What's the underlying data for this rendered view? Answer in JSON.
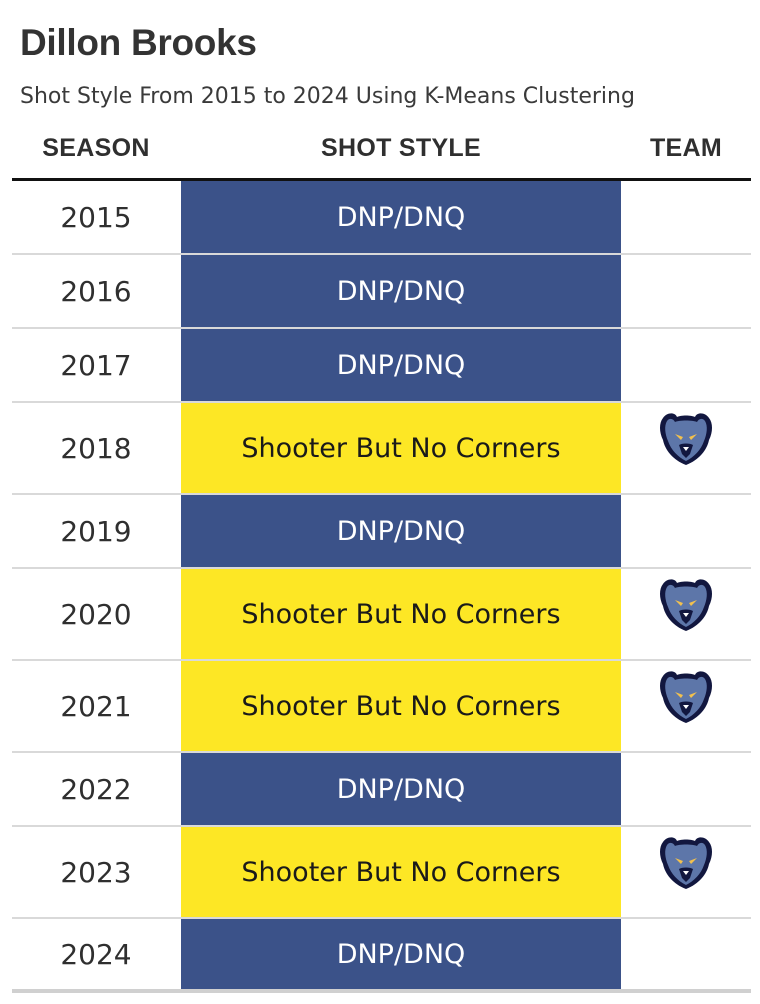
{
  "title": "Dillon Brooks",
  "subtitle": "Shot Style From 2015 to 2024 Using K-Means Clustering",
  "columns": {
    "season": "SEASON",
    "shot_style": "SHOT STYLE",
    "team": "TEAM"
  },
  "colors": {
    "dnp": "#3b5289",
    "shooter": "#fde725",
    "grizzlies_navy": "#12173f",
    "grizzlies_blue": "#5d76a9"
  },
  "chart_data": {
    "type": "table",
    "title": "Dillon Brooks",
    "subtitle": "Shot Style From 2015 to 2024 Using K-Means Clustering",
    "columns": [
      "SEASON",
      "SHOT STYLE",
      "TEAM"
    ],
    "rows": [
      {
        "season": "2015",
        "shot_style": "DNP/DNQ",
        "category": "dnp",
        "team_icon": ""
      },
      {
        "season": "2016",
        "shot_style": "DNP/DNQ",
        "category": "dnp",
        "team_icon": ""
      },
      {
        "season": "2017",
        "shot_style": "DNP/DNQ",
        "category": "dnp",
        "team_icon": ""
      },
      {
        "season": "2018",
        "shot_style": "Shooter But No Corners",
        "category": "shooter",
        "team_icon": "grizzlies-logo-icon"
      },
      {
        "season": "2019",
        "shot_style": "DNP/DNQ",
        "category": "dnp",
        "team_icon": ""
      },
      {
        "season": "2020",
        "shot_style": "Shooter But No Corners",
        "category": "shooter",
        "team_icon": "grizzlies-logo-icon"
      },
      {
        "season": "2021",
        "shot_style": "Shooter But No Corners",
        "category": "shooter",
        "team_icon": "grizzlies-logo-icon"
      },
      {
        "season": "2022",
        "shot_style": "DNP/DNQ",
        "category": "dnp",
        "team_icon": ""
      },
      {
        "season": "2023",
        "shot_style": "Shooter But No Corners",
        "category": "shooter",
        "team_icon": "grizzlies-logo-icon"
      },
      {
        "season": "2024",
        "shot_style": "DNP/DNQ",
        "category": "dnp",
        "team_icon": ""
      }
    ]
  }
}
